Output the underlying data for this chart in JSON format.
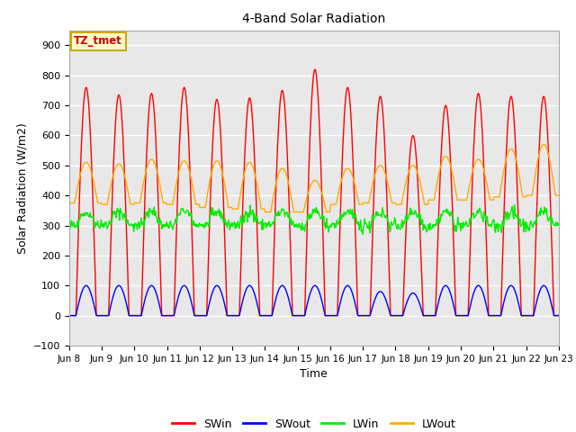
{
  "title": "4-Band Solar Radiation",
  "xlabel": "Time",
  "ylabel": "Solar Radiation (W/m2)",
  "ylim": [
    -100,
    950
  ],
  "yticks": [
    -100,
    0,
    100,
    200,
    300,
    400,
    500,
    600,
    700,
    800,
    900
  ],
  "xtick_labels": [
    "Jun 8",
    "Jun 9",
    "Jun 10",
    "Jun 11",
    "Jun 12",
    "Jun 13",
    "Jun 14",
    "Jun 15",
    "Jun 16",
    "Jun 17",
    "Jun 18",
    "Jun 19",
    "Jun 20",
    "Jun 21",
    "Jun 22",
    "Jun 23"
  ],
  "legend_labels": [
    "SWin",
    "SWout",
    "LWin",
    "LWout"
  ],
  "legend_colors": [
    "#ff0000",
    "#0000ff",
    "#00ee00",
    "#ffaa00"
  ],
  "annotation_text": "TZ_tmet",
  "annotation_color": "#cc0000",
  "annotation_bg": "#ffffcc",
  "annotation_border": "#ccaa00",
  "outer_bg": "#ffffff",
  "plot_bg": "#e8e8e8",
  "grid_color": "#ffffff",
  "line_width": 1.0,
  "num_days": 15,
  "SWin_peaks": [
    760,
    735,
    740,
    760,
    720,
    725,
    750,
    820,
    760,
    730,
    600,
    700,
    740,
    730,
    730
  ],
  "SWout_peaks": [
    100,
    100,
    100,
    100,
    100,
    100,
    100,
    100,
    100,
    80,
    75,
    100,
    100,
    100,
    100
  ],
  "LWout_peaks": [
    510,
    505,
    520,
    515,
    515,
    510,
    490,
    450,
    490,
    500,
    500,
    530,
    520,
    555,
    570
  ],
  "LWout_nights": [
    375,
    370,
    375,
    370,
    360,
    355,
    345,
    345,
    370,
    375,
    370,
    385,
    385,
    395,
    400
  ],
  "LWin_base": 300,
  "LWin_bump": 45
}
